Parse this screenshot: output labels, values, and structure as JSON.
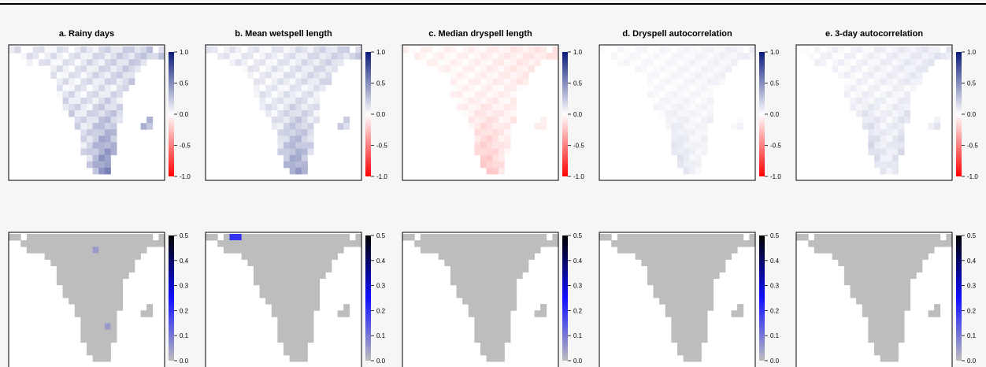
{
  "chart_data": {
    "type": "heatmap",
    "panel_titles": [
      "a. Rainy days",
      "b. Mean wetspell length",
      "c. Median dryspell length",
      "d. Dryspell autocorrelation",
      "e. 3-day autocorrelation"
    ],
    "rows": [
      {
        "row": "top",
        "colorbar_ticks": [
          "1.0",
          "0.5",
          "0.0",
          "-0.5",
          "-1.0"
        ],
        "colorbar_range": [
          -1.0,
          1.0
        ],
        "colorbar_colors": [
          "#ff0000",
          "#ffffff",
          "#0a1a7a"
        ],
        "panels": [
          {
            "title": "a. Rainy days",
            "pattern": "positive, strongest (~0.5) in southeast",
            "peak_value": 0.55,
            "sign": 1
          },
          {
            "title": "b. Mean wetspell length",
            "pattern": "positive, strongest in south",
            "peak_value": 0.45,
            "sign": 1
          },
          {
            "title": "c. Median dryspell length",
            "pattern": "weak negative",
            "peak_value": 0.25,
            "sign": -1
          },
          {
            "title": "d. Dryspell autocorrelation",
            "pattern": "weak positive, near zero",
            "peak_value": 0.15,
            "sign": 1
          },
          {
            "title": "e. 3-day autocorrelation",
            "pattern": "weak positive in south",
            "peak_value": 0.25,
            "sign": 1
          }
        ]
      },
      {
        "row": "bottom",
        "colorbar_ticks": [
          "0.5",
          "0.4",
          "0.3",
          "0.2",
          "0.1",
          "0.0"
        ],
        "colorbar_range": [
          0.0,
          0.5
        ],
        "colorbar_colors": [
          "#bdbdbd",
          "#1010ff",
          "#000000"
        ],
        "panels": [
          {
            "title": "a. Rainy days",
            "background_value": 0.0,
            "hotspots": [
              {
                "col": 14,
                "row": 2,
                "value": 0.05
              },
              {
                "col": 16,
                "row": 14,
                "value": 0.05
              }
            ]
          },
          {
            "title": "b. Mean wetspell length",
            "background_value": 0.0,
            "hotspots": [
              {
                "col": 4,
                "row": 0,
                "value": 0.2
              },
              {
                "col": 5,
                "row": 0,
                "value": 0.2
              }
            ]
          },
          {
            "title": "c. Median dryspell length",
            "background_value": 0.0,
            "hotspots": []
          },
          {
            "title": "d. Dryspell autocorrelation",
            "background_value": 0.0,
            "hotspots": []
          },
          {
            "title": "e. 3-day autocorrelation",
            "background_value": 0.0,
            "hotspots": []
          }
        ]
      }
    ]
  }
}
